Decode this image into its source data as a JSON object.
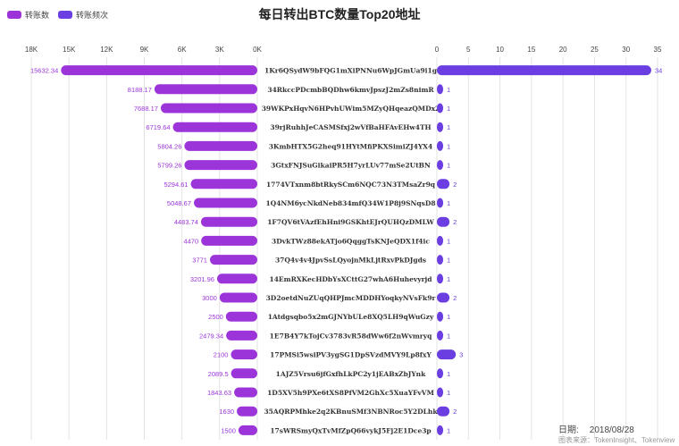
{
  "title": "每日转出BTC数量Top20地址",
  "legend": [
    {
      "label": "转账数",
      "color": "#9b35d9"
    },
    {
      "label": "转账频次",
      "color": "#6a3ee0"
    }
  ],
  "date_label": "日期:",
  "date_value": "2018/08/28",
  "source": "图表来源：TokenInsight、Tokenview",
  "chart_data": {
    "type": "bar",
    "title": "每日转出BTC数量Top20地址",
    "categories": [
      "1Kr6QSydW9bFQG1mXiPNNu6WpJGmUa9i1g",
      "34RkccPDcmbBQDhw6kmvJpszJ2mZs8nimR",
      "39WKPxHqvN6HPvhUWim5MZyQHqeazQMDx2",
      "39rjRuhhJeCASMSfxj2wVfBaHFAvEHw4TH",
      "3KmbHTX5G2heq91HYtMfiPKXSimiZJ4YX4",
      "3GtxFNJSuGikaiPR5H7yrLUv77mSe2UtBN",
      "1774VTxnm8btRkySCm6NQC73N3TMsaZr9q",
      "1Q4NM6ycNkdNeb834mfQ34W1P8j9SNqsD8",
      "1F7QV6tVAzfEhHni9GSKhtEJrQUHQzDMLW",
      "3DvkTWz88ekATjo6QqggTsKNJeQDX1f4ic",
      "37Q4v4v4JpvSsLQyojnMkLjtRxvPkDJgds",
      "14EmRXKecHDbYsXCttG27whA6Huhevyrjd",
      "3D2oetdNuZUqQHPJmcMDDHYoqkyNVsFk9r",
      "1Atdgsqbo5x2mGJNYbULe8XQ5LH9qWuGzy",
      "1E7B4Y7kTojCv3783vR58dWw6f2nWvmryq",
      "17PMSi5wsiPV3ygSG1DpSVzdMVY9Lp8fxY",
      "1AJZ5Vrsu6jfGxfhLkPC2y1jEABxZbJYnk",
      "1D5XV5h9PXe6tXS8PfVM2GhXc5XuaYFvVM",
      "35AQRPMhke2q2KBnuSMf3NBNRoc5Y2DLhk",
      "17sWRSmyQxTvMfZpQ66vykJ5Fj2E1Dce3p"
    ],
    "series": [
      {
        "name": "转账数",
        "values": [
          15632.34,
          8188.17,
          7688.17,
          6719.64,
          5804.26,
          5799.26,
          5294.61,
          5048.67,
          4483.74,
          4470,
          3771,
          3201.96,
          3000,
          2500,
          2479.34,
          2100,
          2089.5,
          1843.63,
          1630,
          1500
        ]
      },
      {
        "name": "转账频次",
        "values": [
          34,
          1,
          1,
          1,
          1,
          1,
          2,
          1,
          2,
          1,
          1,
          1,
          2,
          1,
          1,
          3,
          1,
          1,
          2,
          1
        ]
      }
    ],
    "left_axis": {
      "range": [
        0,
        18000
      ],
      "ticks": [
        "18K",
        "15K",
        "12K",
        "9K",
        "6K",
        "3K",
        "0K"
      ],
      "reversed": true
    },
    "right_axis": {
      "range": [
        0,
        35
      ],
      "ticks": [
        "0",
        "5",
        "10",
        "15",
        "20",
        "25",
        "30",
        "35"
      ]
    },
    "grid": true,
    "legend_position": "top-left"
  }
}
